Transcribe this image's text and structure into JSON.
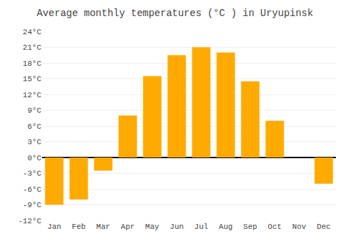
{
  "chart_data": {
    "type": "bar",
    "title": "Average monthly temperatures (°C ) in Uryupinsk",
    "categories": [
      "Jan",
      "Feb",
      "Mar",
      "Apr",
      "May",
      "Jun",
      "Jul",
      "Aug",
      "Sep",
      "Oct",
      "Nov",
      "Dec"
    ],
    "values": [
      -9,
      -8,
      -2.5,
      8,
      15.5,
      19.5,
      21,
      20,
      14.5,
      7,
      0,
      -5
    ],
    "color": "#FFAA00",
    "ylim": [
      -12,
      24
    ],
    "yticks": [
      {
        "value": -12,
        "label": "-12°C"
      },
      {
        "value": -9,
        "label": "-9°C"
      },
      {
        "value": -6,
        "label": "-6°C"
      },
      {
        "value": -3,
        "label": "-3°C"
      },
      {
        "value": 0,
        "label": "0°C"
      },
      {
        "value": 3,
        "label": "3°C"
      },
      {
        "value": 6,
        "label": "6°C"
      },
      {
        "value": 9,
        "label": "9°C"
      },
      {
        "value": 12,
        "label": "12°C"
      },
      {
        "value": 15,
        "label": "15°C"
      },
      {
        "value": 18,
        "label": "18°C"
      },
      {
        "value": 21,
        "label": "21°C"
      },
      {
        "value": 24,
        "label": "24°C"
      }
    ],
    "grid": true
  }
}
